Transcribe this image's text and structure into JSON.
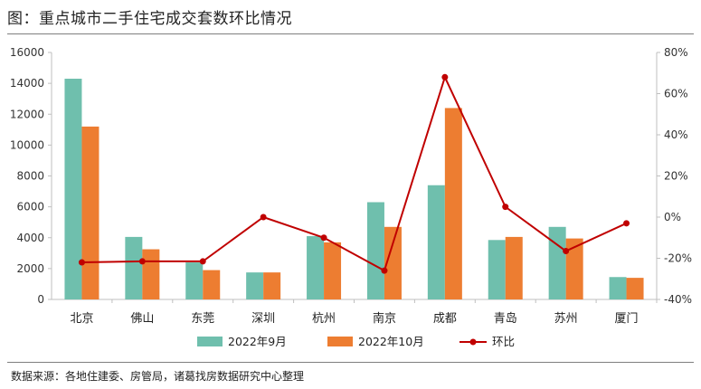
{
  "title": "图：重点城市二手住宅成交套数环比情况",
  "source": "数据来源：各地住建委、房管局，诸葛找房数据研究中心整理",
  "colors": {
    "sep": "#6fbfad",
    "oct": "#ed7d31",
    "mom": "#c00000"
  },
  "chart_data": {
    "type": "bar",
    "categories": [
      "北京",
      "佛山",
      "东莞",
      "深圳",
      "杭州",
      "南京",
      "成都",
      "青岛",
      "苏州",
      "厦门"
    ],
    "series": [
      {
        "name": "2022年9月",
        "type": "bar",
        "axis": "left",
        "values": [
          14300,
          4050,
          2400,
          1750,
          4100,
          6300,
          7400,
          3850,
          4700,
          1450
        ]
      },
      {
        "name": "2022年10月",
        "type": "bar",
        "axis": "left",
        "values": [
          11200,
          3250,
          1900,
          1750,
          3700,
          4700,
          12400,
          4050,
          3950,
          1400
        ]
      },
      {
        "name": "环比",
        "type": "line",
        "axis": "right",
        "values": [
          -22,
          -21.5,
          -21.5,
          0,
          -10,
          -26,
          68,
          5,
          -16.5,
          -3
        ]
      }
    ],
    "ylim_left": [
      0,
      16000
    ],
    "yticks_left": [
      0,
      2000,
      4000,
      6000,
      8000,
      10000,
      12000,
      14000,
      16000
    ],
    "ylim_right": [
      -40,
      80
    ],
    "yticks_right": [
      "-40%",
      "-20%",
      "0%",
      "20%",
      "40%",
      "60%",
      "80%"
    ],
    "grid": false,
    "legend": "bottom"
  }
}
